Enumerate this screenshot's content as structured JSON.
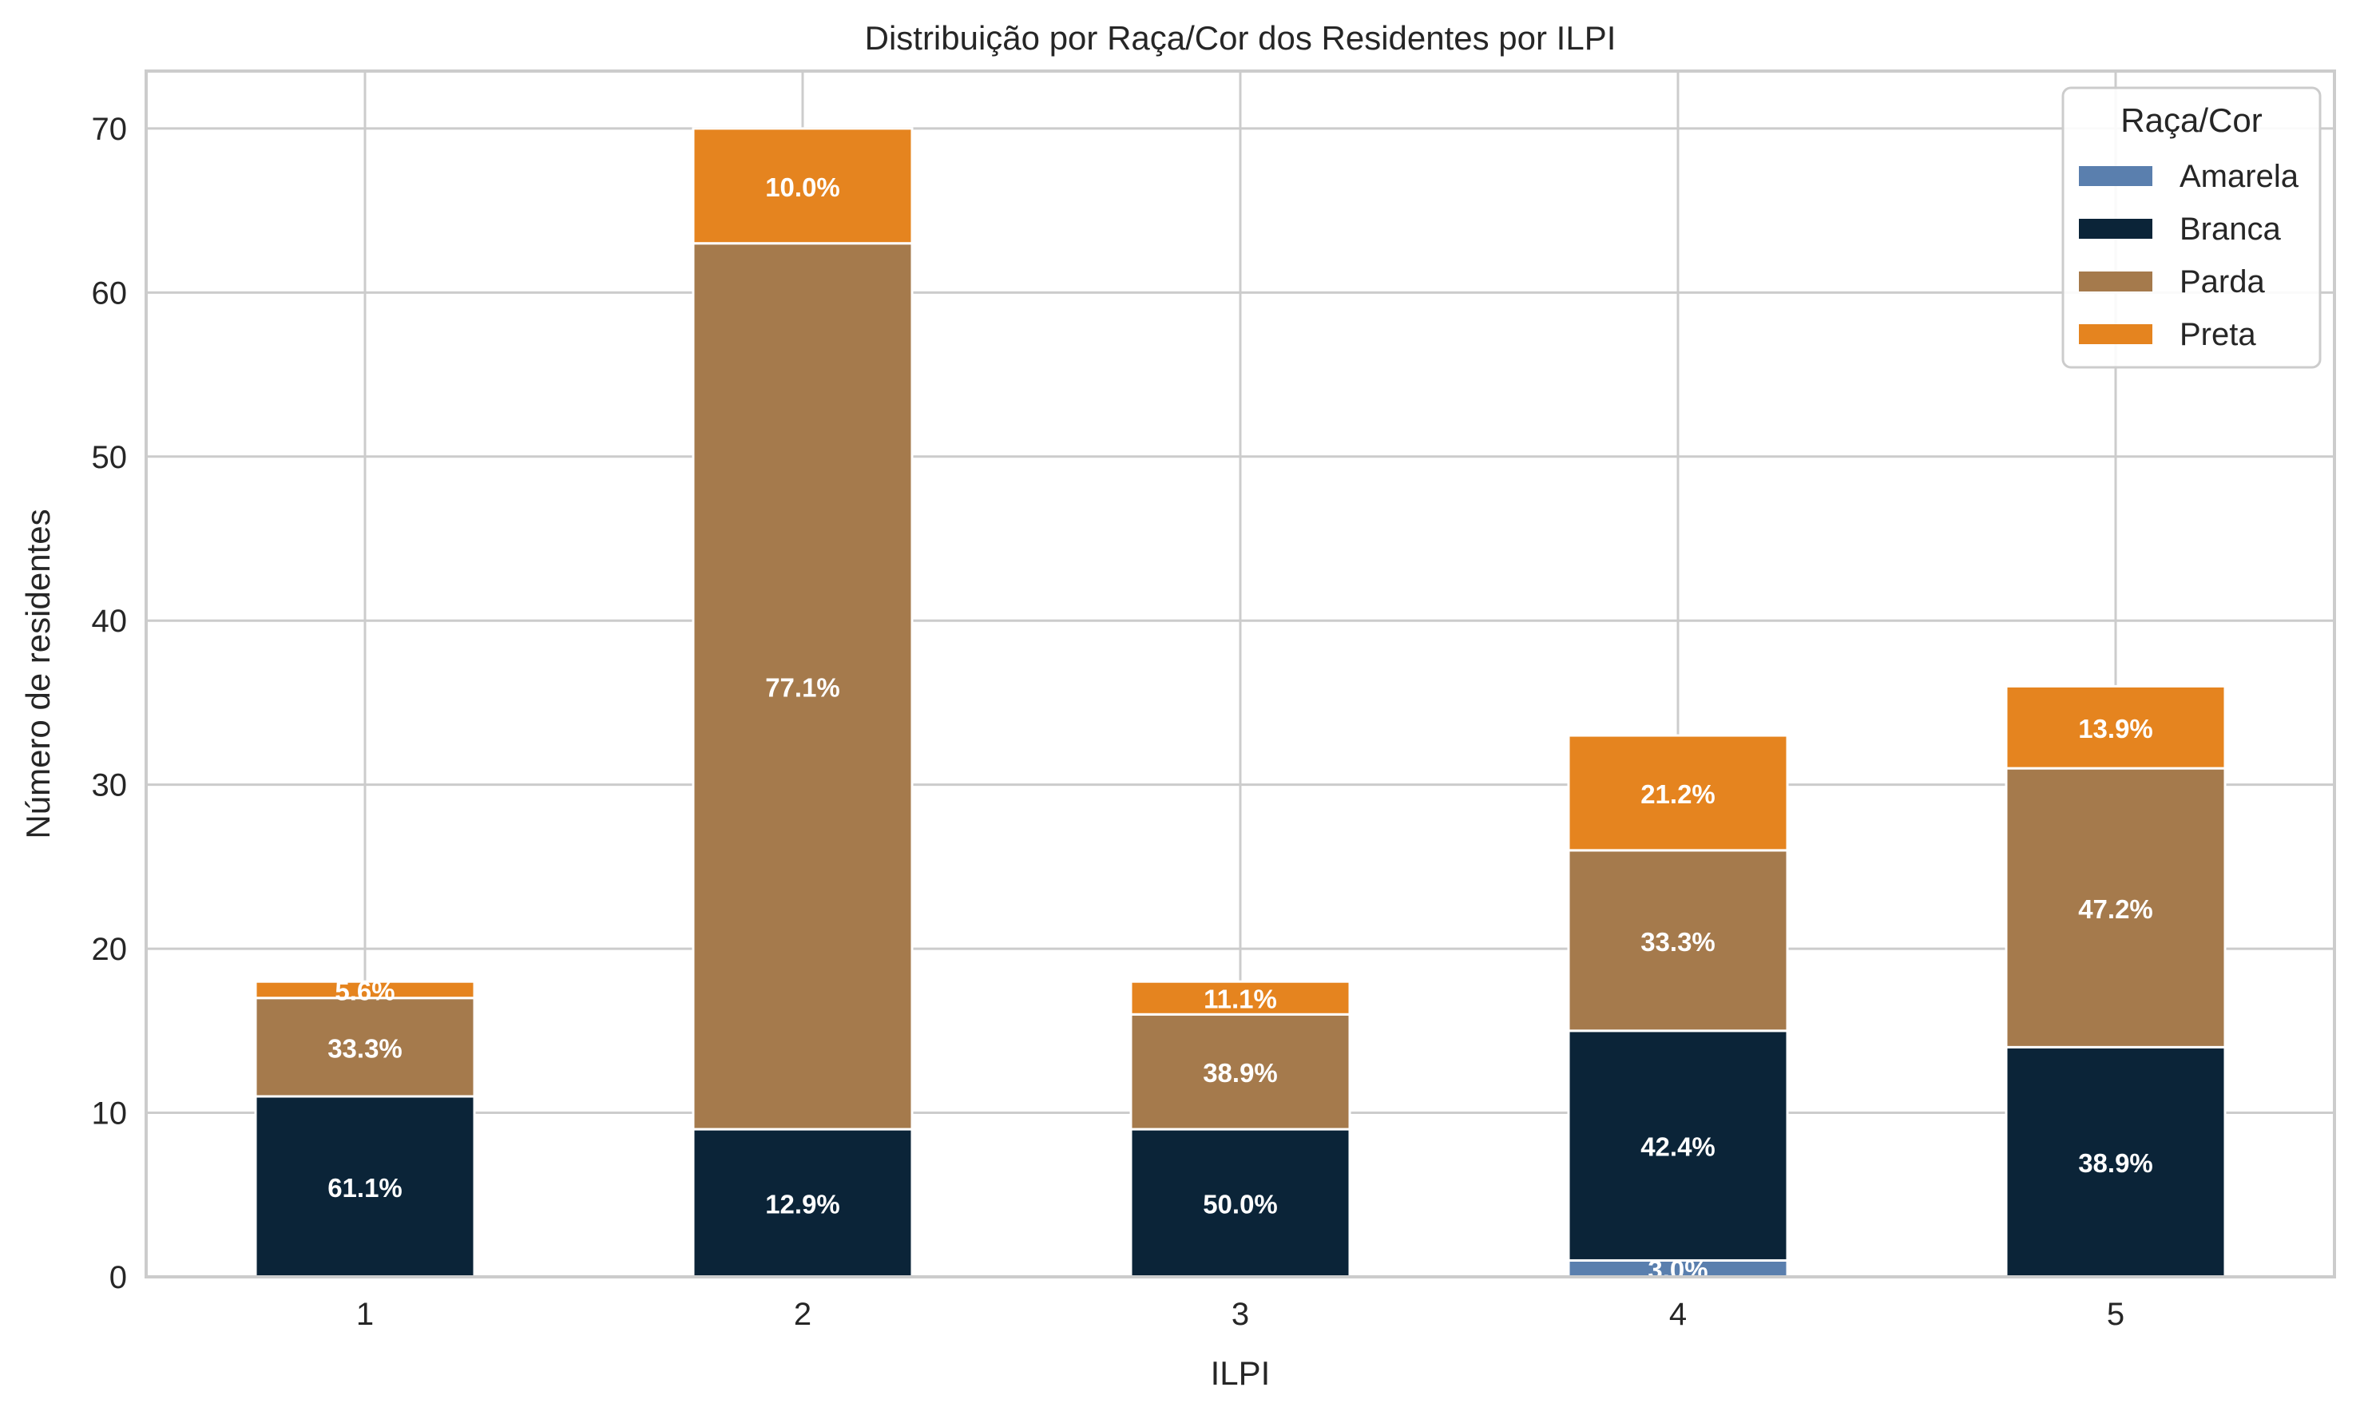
{
  "chart_data": {
    "type": "bar",
    "stacked": true,
    "title": "Distribuição por Raça/Cor dos Residentes por ILPI",
    "xlabel": "ILPI",
    "ylabel": "Número de residentes",
    "categories": [
      "1",
      "2",
      "3",
      "4",
      "5"
    ],
    "ylim": [
      0,
      73.5
    ],
    "yticks": [
      0,
      10,
      20,
      30,
      40,
      50,
      60,
      70
    ],
    "grid": true,
    "legend": {
      "title": "Raça/Cor",
      "position": "top-right"
    },
    "series": [
      {
        "name": "Amarela",
        "color": "#5a7fae",
        "values": [
          0,
          0,
          0,
          1,
          0
        ],
        "labels": [
          "",
          "",
          "",
          "3.0%",
          ""
        ]
      },
      {
        "name": "Branca",
        "color": "#0b2438",
        "values": [
          11,
          9,
          9,
          14,
          14
        ],
        "labels": [
          "61.1%",
          "12.9%",
          "50.0%",
          "42.4%",
          "38.9%"
        ]
      },
      {
        "name": "Parda",
        "color": "#a57a4c",
        "values": [
          6,
          54,
          7,
          11,
          17
        ],
        "labels": [
          "33.3%",
          "77.1%",
          "38.9%",
          "33.3%",
          "47.2%"
        ]
      },
      {
        "name": "Preta",
        "color": "#e5841f",
        "values": [
          1,
          7,
          2,
          7,
          5
        ],
        "labels": [
          "5.6%",
          "10.0%",
          "11.1%",
          "21.2%",
          "13.9%"
        ]
      }
    ]
  }
}
